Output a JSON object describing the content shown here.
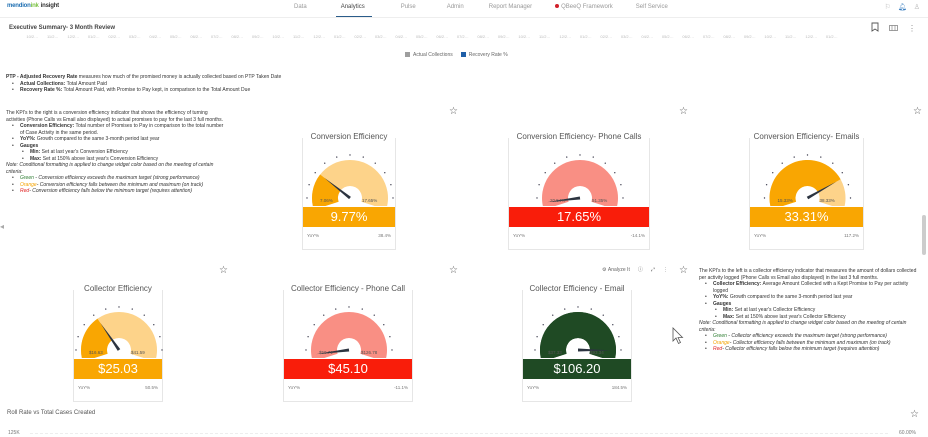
{
  "app": {
    "logo": {
      "part1": "mendion",
      "part2": "ink",
      "part3": "insight"
    },
    "nav": [
      {
        "label": "Data",
        "active": false
      },
      {
        "label": "Analytics",
        "active": true
      },
      {
        "label": "Pulse",
        "active": false
      },
      {
        "label": "Admin",
        "active": false
      },
      {
        "label": "Report Manager",
        "active": false
      },
      {
        "label": "QBeeQ Framework",
        "active": false,
        "dot": true
      },
      {
        "label": "Self Service",
        "active": false
      }
    ],
    "top_icons": [
      "flag-icon",
      "bell-icon",
      "user-icon"
    ]
  },
  "page": {
    "title": "Executive Summary- 3 Month Review",
    "actions": [
      "bookmark-icon",
      "layout-icon",
      "more-icon"
    ]
  },
  "top_chart": {
    "x_ticks": [
      "10/2…",
      "11/2…",
      "12/2…",
      "01/2…",
      "02/2…",
      "03/2…",
      "04/2…",
      "05/2…",
      "06/2…",
      "07/2…",
      "08/2…",
      "09/2…",
      "10/2…",
      "11/2…",
      "12/2…",
      "01/2…",
      "02/2…",
      "03/2…",
      "04/2…",
      "05/2…",
      "06/2…",
      "07/2…",
      "08/2…",
      "09/2…",
      "10/2…",
      "11/2…",
      "12/2…",
      "01/2…",
      "02/2…",
      "03/2…",
      "04/2…",
      "05/2…",
      "06/2…",
      "07/2…",
      "08/2…",
      "09/2…",
      "10/2…",
      "11/2…",
      "12/2…",
      "01/2…"
    ],
    "legend": [
      {
        "label": "Actual Collections",
        "color": "#9e9e9e"
      },
      {
        "label": "Recovery Rate %",
        "color": "#1f5fa8"
      }
    ]
  },
  "ptp_desc": {
    "lead_bold": "PTP - Adjusted Recovery Rate",
    "lead_text": " measures how much of the promised money is actually collected based on PTP Taken Date",
    "items": [
      {
        "term": "Actual Collections:",
        "text": " Total Amount Paid"
      },
      {
        "term": "Recovery Rate %:",
        "text": " Total Amount Paid, with Promise to Pay kept, in comparison to the Total Amount Due"
      }
    ]
  },
  "conv_desc": {
    "intro": "The KPI's to the right is a conversion efficiency indicator that shows the efficiency of turning activities (Phone Calls vs Email also displayed) to actual promises to pay for the last 3 full months.",
    "item1_term": "Conversion Efficiency:",
    "item1_text": " Total number of Promises to Pay in comparison to the total number of Case Activity in the same period.",
    "item2_term": "YoY%:",
    "item2_text": " Growth compared to the same 3-month period last year",
    "item3_term": "Gauges",
    "min_term": "Min:",
    "min_text": " Set at last year's Conversion Efficiency",
    "max_term": "Max:",
    "max_text": " Set at 150% above last year's Conversion Efficiency",
    "note": "Note: Conditional formatting is applied to change widget color based on the meeting of certain criteria:",
    "green_label": "Green",
    "green_text": " - Conversion efficiency exceeds the maximum target (strong performance)",
    "orange_label": "Orange",
    "orange_text": "- Conversion efficiency falls between the minimum and maximum (on track)",
    "red_label": "Red",
    "red_text": "- Conversion efficiency falls below the minimum target (requires attention)"
  },
  "coll_desc": {
    "intro": "The KPI's to the left is a collector efficiency indicator that measures the amount of dollars collected per activity logged (Phone Calls vs Email also displayed) in the last 3 full months.",
    "item1_term": "Collector Efficiency:",
    "item1_text": " Average Amount Collected with a Kept Promise to Pay per activity logged",
    "item2_term": "YoY%:",
    "item2_text": " Growth compared to the same 3-month period last year",
    "item3_term": "Gauges",
    "min_term": "Min:",
    "min_text": " Set at last year's Collector Efficiency",
    "max_term": "Max:",
    "max_text": " Set at 150% above last year's Collector Efficiency",
    "note": "Note: Conditional formatting is applied to change widget color based on the meeting of certain criteria:",
    "green_label": "Green",
    "green_text": " - Collector efficiency exceeds the maximum target (strong performance)",
    "orange_label": "Orange",
    "orange_text": "- Collector efficiency falls between the minimum and maximum (on track)",
    "red_label": "Red",
    "red_text": "- Collector efficiency falls below the minimum target (requires attention)"
  },
  "gauges": [
    {
      "title": "Conversion Efficiency",
      "min": "7.06%",
      "max": "17.65%",
      "value": "9.77%",
      "yoy_label": "YoY%",
      "yoy": "38.4%",
      "color": "#f9a602",
      "light": "#fdd38a",
      "fraction": 0.26
    },
    {
      "title": "Conversion Efficiency- Phone Calls",
      "min": "20.54%",
      "max": "51.35%",
      "value": "17.65%",
      "yoy_label": "YoY%",
      "yoy": "-14.1%",
      "color": "#f91d0a",
      "light": "#f98f84",
      "fraction": 0.0
    },
    {
      "title": "Conversion Efficiency- Emails",
      "min": "15.33%",
      "max": "38.33%",
      "value": "33.31%",
      "yoy_label": "YoY%",
      "yoy": "117.2%",
      "color": "#f9a602",
      "light": "#fdd38a",
      "fraction": 0.78
    },
    {
      "title": "Collector Efficiency",
      "min": "$16.63",
      "max": "$41.59",
      "value": "$25.03",
      "yoy_label": "YoY%",
      "yoy": "50.5%",
      "color": "#f9a602",
      "light": "#fdd38a",
      "fraction": 0.34
    },
    {
      "title": "Collector Efficiency - Phone Call",
      "min": "$50.71",
      "max": "$126.78",
      "value": "$45.10",
      "yoy_label": "YoY%",
      "yoy": "-11.1%",
      "color": "#f91d0a",
      "light": "#f98f84",
      "fraction": 0.0
    },
    {
      "title": "Collector Efficiency - Email",
      "min": "$37.33",
      "max": "$93.34",
      "value": "$106.20",
      "yoy_label": "YoY%",
      "yoy": "184.5%",
      "color": "#1f4a24",
      "light": "#1f4a24",
      "fraction": 1.0
    }
  ],
  "widget_toolbar": {
    "analyze_label": "Analyze It"
  },
  "bottom_chart": {
    "title": "Roll Rate vs Total Cases Created",
    "y_left_top": "125K",
    "y_right_top": "60.00%"
  }
}
